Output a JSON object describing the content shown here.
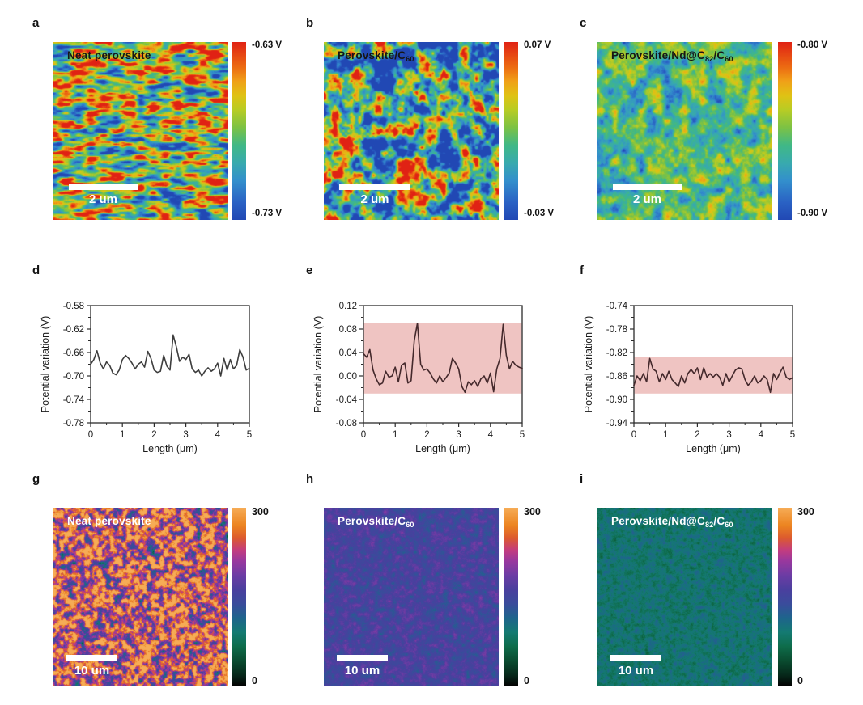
{
  "figure_letters": [
    "a",
    "b",
    "c",
    "d",
    "e",
    "f",
    "g",
    "h",
    "i"
  ],
  "colormaps": {
    "rainbow": [
      [
        0,
        "#2148b4"
      ],
      [
        0.1,
        "#2a62c4"
      ],
      [
        0.22,
        "#338fcc"
      ],
      [
        0.32,
        "#38aaae"
      ],
      [
        0.42,
        "#40b886"
      ],
      [
        0.52,
        "#7cc244"
      ],
      [
        0.62,
        "#b8cc24"
      ],
      [
        0.7,
        "#e0c214"
      ],
      [
        0.78,
        "#f0a018"
      ],
      [
        0.86,
        "#ec6a12"
      ],
      [
        1,
        "#e02214"
      ]
    ],
    "pl": [
      [
        0,
        "#030303"
      ],
      [
        0.06,
        "#06281a"
      ],
      [
        0.14,
        "#0a4c30"
      ],
      [
        0.22,
        "#0e6c4a"
      ],
      [
        0.3,
        "#147a72"
      ],
      [
        0.38,
        "#1e648c"
      ],
      [
        0.46,
        "#3a4c9c"
      ],
      [
        0.54,
        "#4a3f9e"
      ],
      [
        0.62,
        "#6c3ca4"
      ],
      [
        0.7,
        "#98389e"
      ],
      [
        0.76,
        "#c23c80"
      ],
      [
        0.83,
        "#dc5a2e"
      ],
      [
        0.9,
        "#ec8420"
      ],
      [
        1,
        "#f6ac56"
      ]
    ]
  },
  "kpfm_row": [
    {
      "letter": "a",
      "title_parts": [
        [
          "t",
          "Neat perovskite"
        ]
      ],
      "title_color": "#161616",
      "scalebar_label": "2 um",
      "cbar_top_label": "-0.63 V",
      "cbar_bottom_label": "-0.73 V",
      "texture": {
        "seed": 11,
        "nx": 14,
        "ny": 40,
        "octaves": 2,
        "base": 0.6,
        "contrast": 1.9,
        "grain": 0.06
      }
    },
    {
      "letter": "b",
      "title_parts": [
        [
          "t",
          "Perovskite/C"
        ],
        [
          "s",
          "60"
        ]
      ],
      "title_color": "#161616",
      "scalebar_label": "2 um",
      "cbar_top_label": "0.07 V",
      "cbar_bottom_label": "-0.03 V",
      "texture": {
        "seed": 22,
        "nx": 16,
        "ny": 16,
        "octaves": 3,
        "base": 0.43,
        "contrast": 2.6,
        "grain": 0.05
      }
    },
    {
      "letter": "c",
      "title_parts": [
        [
          "t",
          "Perovskite/Nd@C"
        ],
        [
          "s",
          "82"
        ],
        [
          "t",
          "/C"
        ],
        [
          "s",
          "60"
        ]
      ],
      "title_color": "#161616",
      "scalebar_label": "2 um",
      "cbar_top_label": "-0.80 V",
      "cbar_bottom_label": "-0.90 V",
      "texture": {
        "seed": 33,
        "nx": 20,
        "ny": 18,
        "octaves": 3,
        "base": 0.42,
        "contrast": 0.95,
        "grain": 0.05
      }
    }
  ],
  "pl_row": [
    {
      "letter": "g",
      "title_parts": [
        [
          "t",
          "Neat perovskite"
        ]
      ],
      "title_color": "#ffffff",
      "scalebar_label": "10 um",
      "cbar_top_label": "300",
      "cbar_bottom_label": "0",
      "texture": {
        "seed": 44,
        "nx": 42,
        "ny": 42,
        "octaves": 2,
        "base": 0.8,
        "contrast": 1.25,
        "grain": 0.18
      }
    },
    {
      "letter": "h",
      "title_parts": [
        [
          "t",
          "Perovskite/C"
        ],
        [
          "s",
          "60"
        ]
      ],
      "title_color": "#ffffff",
      "scalebar_label": "10 um",
      "cbar_top_label": "300",
      "cbar_bottom_label": "0",
      "texture": {
        "seed": 55,
        "nx": 40,
        "ny": 40,
        "octaves": 2,
        "base": 0.52,
        "contrast": 0.28,
        "grain": 0.07
      }
    },
    {
      "letter": "i",
      "title_parts": [
        [
          "t",
          "Perovskite/Nd@C"
        ],
        [
          "s",
          "82"
        ],
        [
          "t",
          "/C"
        ],
        [
          "s",
          "60"
        ]
      ],
      "title_color": "#ffffff",
      "scalebar_label": "10 um",
      "cbar_top_label": "300",
      "cbar_bottom_label": "0",
      "texture": {
        "seed": 66,
        "nx": 50,
        "ny": 50,
        "octaves": 2,
        "base": 0.3,
        "contrast": 0.22,
        "grain": 0.07
      }
    }
  ],
  "chart_data": [
    {
      "id": "d",
      "type": "line",
      "title": "",
      "xlabel": "Length (μm)",
      "ylabel": "Potential variation (V)",
      "xlim": [
        0,
        5
      ],
      "ylim": [
        -0.78,
        -0.58
      ],
      "xticks": [
        "0",
        "1",
        "2",
        "3",
        "4",
        "5"
      ],
      "yticks": [
        "-0.58",
        "-0.62",
        "-0.66",
        "-0.70",
        "-0.74",
        "-0.78"
      ],
      "x_start": 0,
      "x_step": 0.1,
      "line_color": "#3d3d3d",
      "band": null,
      "band_color": null,
      "y": [
        -0.68,
        -0.672,
        -0.657,
        -0.678,
        -0.688,
        -0.676,
        -0.682,
        -0.695,
        -0.698,
        -0.69,
        -0.672,
        -0.665,
        -0.67,
        -0.678,
        -0.688,
        -0.68,
        -0.676,
        -0.685,
        -0.658,
        -0.67,
        -0.69,
        -0.694,
        -0.692,
        -0.665,
        -0.683,
        -0.69,
        -0.63,
        -0.65,
        -0.675,
        -0.668,
        -0.672,
        -0.663,
        -0.688,
        -0.694,
        -0.69,
        -0.7,
        -0.692,
        -0.686,
        -0.692,
        -0.688,
        -0.678,
        -0.7,
        -0.67,
        -0.69,
        -0.672,
        -0.688,
        -0.682,
        -0.655,
        -0.668,
        -0.69,
        -0.687
      ]
    },
    {
      "id": "e",
      "type": "line",
      "title": "",
      "xlabel": "Length (μm)",
      "ylabel": "Potential variation (V)",
      "xlim": [
        0,
        5
      ],
      "ylim": [
        -0.08,
        0.12
      ],
      "xticks": [
        "0",
        "1",
        "2",
        "3",
        "4",
        "5"
      ],
      "yticks": [
        "0.12",
        "0.08",
        "0.04",
        "0.00",
        "-0.04",
        "-0.08"
      ],
      "x_start": 0,
      "x_step": 0.1,
      "line_color": "#44292c",
      "band": [
        -0.03,
        0.09
      ],
      "band_color": "#efc4c2",
      "y": [
        0.038,
        0.032,
        0.045,
        0.01,
        -0.005,
        -0.015,
        -0.012,
        0.008,
        -0.002,
        0.0,
        0.015,
        -0.01,
        0.018,
        0.022,
        -0.012,
        -0.008,
        0.06,
        0.09,
        0.02,
        0.01,
        0.012,
        0.005,
        -0.005,
        -0.012,
        0.0,
        -0.01,
        -0.003,
        0.005,
        0.03,
        0.022,
        0.012,
        -0.018,
        -0.028,
        -0.01,
        -0.015,
        -0.008,
        -0.018,
        -0.005,
        0.0,
        -0.012,
        0.005,
        -0.027,
        0.012,
        0.03,
        0.088,
        0.035,
        0.012,
        0.025,
        0.018,
        0.015,
        0.013
      ]
    },
    {
      "id": "f",
      "type": "line",
      "title": "",
      "xlabel": "Length (μm)",
      "ylabel": "Potential variation (V)",
      "xlim": [
        0,
        5
      ],
      "ylim": [
        -0.94,
        -0.74
      ],
      "xticks": [
        "0",
        "1",
        "2",
        "3",
        "4",
        "5"
      ],
      "yticks": [
        "-0.74",
        "-0.78",
        "-0.82",
        "-0.86",
        "-0.90",
        "-0.94"
      ],
      "x_start": 0,
      "x_step": 0.1,
      "line_color": "#44292c",
      "band": [
        -0.89,
        -0.827
      ],
      "band_color": "#efc4c2",
      "y": [
        -0.876,
        -0.86,
        -0.868,
        -0.856,
        -0.87,
        -0.83,
        -0.848,
        -0.852,
        -0.87,
        -0.856,
        -0.866,
        -0.852,
        -0.866,
        -0.872,
        -0.878,
        -0.86,
        -0.872,
        -0.856,
        -0.849,
        -0.856,
        -0.846,
        -0.866,
        -0.846,
        -0.862,
        -0.856,
        -0.862,
        -0.856,
        -0.862,
        -0.876,
        -0.856,
        -0.87,
        -0.86,
        -0.85,
        -0.846,
        -0.848,
        -0.866,
        -0.876,
        -0.87,
        -0.86,
        -0.872,
        -0.868,
        -0.86,
        -0.866,
        -0.888,
        -0.856,
        -0.866,
        -0.855,
        -0.845,
        -0.862,
        -0.866,
        -0.863
      ]
    },
    {
      "id": "a",
      "type": "heatmap",
      "label": "Neat perovskite",
      "signal": "KPFM surface potential map",
      "colorbar_top": "-0.63 V",
      "colorbar_bottom": "-0.73 V",
      "scale_bar": "2 um",
      "colormap": "rainbow"
    },
    {
      "id": "b",
      "type": "heatmap",
      "label": "Perovskite/C60",
      "signal": "KPFM surface potential map",
      "colorbar_top": "0.07 V",
      "colorbar_bottom": "-0.03 V",
      "scale_bar": "2 um",
      "colormap": "rainbow"
    },
    {
      "id": "c",
      "type": "heatmap",
      "label": "Perovskite/Nd@C82/C60",
      "signal": "KPFM surface potential map",
      "colorbar_top": "-0.80 V",
      "colorbar_bottom": "-0.90 V",
      "scale_bar": "2 um",
      "colormap": "rainbow"
    },
    {
      "id": "g",
      "type": "heatmap",
      "label": "Neat perovskite",
      "signal": "intensity map",
      "colorbar_top": "300",
      "colorbar_bottom": "0",
      "scale_bar": "10 um",
      "colormap": "pl"
    },
    {
      "id": "h",
      "type": "heatmap",
      "label": "Perovskite/C60",
      "signal": "intensity map",
      "colorbar_top": "300",
      "colorbar_bottom": "0",
      "scale_bar": "10 um",
      "colormap": "pl"
    },
    {
      "id": "i",
      "type": "heatmap",
      "label": "Perovskite/Nd@C82/C60",
      "signal": "intensity map",
      "colorbar_top": "300",
      "colorbar_bottom": "0",
      "scale_bar": "10 um",
      "colormap": "pl"
    }
  ]
}
